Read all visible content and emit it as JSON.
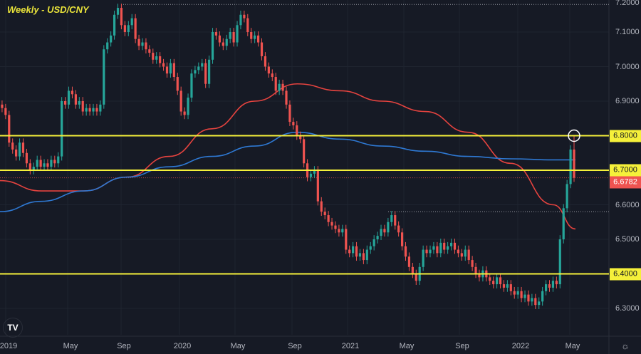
{
  "title": "Weekly - USD/CNY",
  "colors": {
    "background": "#161a25",
    "up": "#26a69a",
    "down": "#ef5350",
    "level": "#f5f03a",
    "ma_red": "#e5433f",
    "ma_blue": "#2e78d2"
  },
  "chart_data": {
    "type": "candlestick",
    "title": "Weekly - USD/CNY",
    "ylim": [
      6.25,
      7.2
    ],
    "y_ticks": [
      "7.2000",
      "7.1000",
      "7.0000",
      "6.9000",
      "6.6000",
      "6.5000",
      "6.3000"
    ],
    "x_ticks": [
      "2019",
      "May",
      "Sep",
      "2020",
      "May",
      "Sep",
      "2021",
      "May",
      "Sep",
      "2022",
      "May"
    ],
    "grid": true,
    "first_open": 6.91,
    "closes": [
      6.89,
      6.88,
      6.86,
      6.78,
      6.76,
      6.74,
      6.78,
      6.75,
      6.72,
      6.7,
      6.71,
      6.73,
      6.71,
      6.72,
      6.71,
      6.73,
      6.72,
      6.74,
      6.9,
      6.89,
      6.93,
      6.92,
      6.89,
      6.9,
      6.87,
      6.88,
      6.87,
      6.88,
      6.87,
      6.89,
      7.05,
      7.07,
      7.09,
      7.15,
      7.17,
      7.12,
      7.1,
      7.12,
      7.14,
      7.08,
      7.06,
      7.07,
      7.05,
      7.04,
      7.02,
      7.03,
      7.01,
      7.0,
      6.98,
      7.01,
      6.97,
      6.93,
      6.87,
      6.86,
      6.91,
      6.98,
      6.99,
      7.0,
      7.01,
      6.95,
      7.02,
      7.1,
      7.09,
      7.07,
      7.06,
      7.08,
      7.1,
      7.07,
      7.12,
      7.15,
      7.14,
      7.1,
      7.08,
      7.09,
      7.07,
      7.03,
      7.0,
      6.98,
      6.97,
      6.93,
      6.95,
      6.93,
      6.89,
      6.84,
      6.83,
      6.8,
      6.79,
      6.72,
      6.68,
      6.69,
      6.7,
      6.61,
      6.58,
      6.57,
      6.55,
      6.54,
      6.53,
      6.52,
      6.53,
      6.47,
      6.46,
      6.48,
      6.45,
      6.46,
      6.44,
      6.47,
      6.48,
      6.5,
      6.51,
      6.53,
      6.52,
      6.55,
      6.57,
      6.54,
      6.52,
      6.48,
      6.45,
      6.42,
      6.4,
      6.38,
      6.42,
      6.47,
      6.46,
      6.47,
      6.48,
      6.46,
      6.49,
      6.47,
      6.48,
      6.49,
      6.47,
      6.46,
      6.45,
      6.47,
      6.44,
      6.42,
      6.4,
      6.39,
      6.41,
      6.39,
      6.38,
      6.37,
      6.39,
      6.37,
      6.36,
      6.37,
      6.35,
      6.34,
      6.35,
      6.33,
      6.34,
      6.32,
      6.33,
      6.31,
      6.32,
      6.35,
      6.37,
      6.36,
      6.38,
      6.37,
      6.5,
      6.59,
      6.66,
      6.76,
      6.6782
    ],
    "last_high": 6.8,
    "moving_averages": [
      {
        "color": "red",
        "points": [
          [
            "2018-12",
            6.67
          ],
          [
            "2019-03",
            6.64
          ],
          [
            "2019-06",
            6.64
          ],
          [
            "2019-09",
            6.68
          ],
          [
            "2019-12",
            6.74
          ],
          [
            "2020-03",
            6.82
          ],
          [
            "2020-06",
            6.9
          ],
          [
            "2020-09",
            6.95
          ],
          [
            "2020-12",
            6.93
          ],
          [
            "2021-03",
            6.9
          ],
          [
            "2021-06",
            6.87
          ],
          [
            "2021-09",
            6.81
          ],
          [
            "2021-12",
            6.72
          ],
          [
            "2022-03",
            6.6
          ],
          [
            "2022-05",
            6.53
          ]
        ]
      },
      {
        "color": "blue",
        "points": [
          [
            "2018-12",
            6.58
          ],
          [
            "2019-03",
            6.61
          ],
          [
            "2019-06",
            6.64
          ],
          [
            "2019-09",
            6.68
          ],
          [
            "2019-12",
            6.71
          ],
          [
            "2020-03",
            6.74
          ],
          [
            "2020-06",
            6.77
          ],
          [
            "2020-09",
            6.81
          ],
          [
            "2020-12",
            6.79
          ],
          [
            "2021-03",
            6.77
          ],
          [
            "2021-06",
            6.755
          ],
          [
            "2021-09",
            6.74
          ],
          [
            "2021-12",
            6.733
          ],
          [
            "2022-03",
            6.73
          ],
          [
            "2022-05",
            6.73
          ]
        ]
      }
    ],
    "levels": [
      {
        "value": 6.8,
        "label": "6.8000"
      },
      {
        "value": 6.7,
        "label": "6.7000"
      },
      {
        "value": 6.4,
        "label": "6.4000"
      }
    ],
    "dotted_levels": [
      7.18,
      6.58
    ],
    "last_price": {
      "value": 6.6782,
      "label": "6.6782"
    },
    "annotation": {
      "type": "circle",
      "value": 6.8,
      "date": "2022-05"
    }
  }
}
